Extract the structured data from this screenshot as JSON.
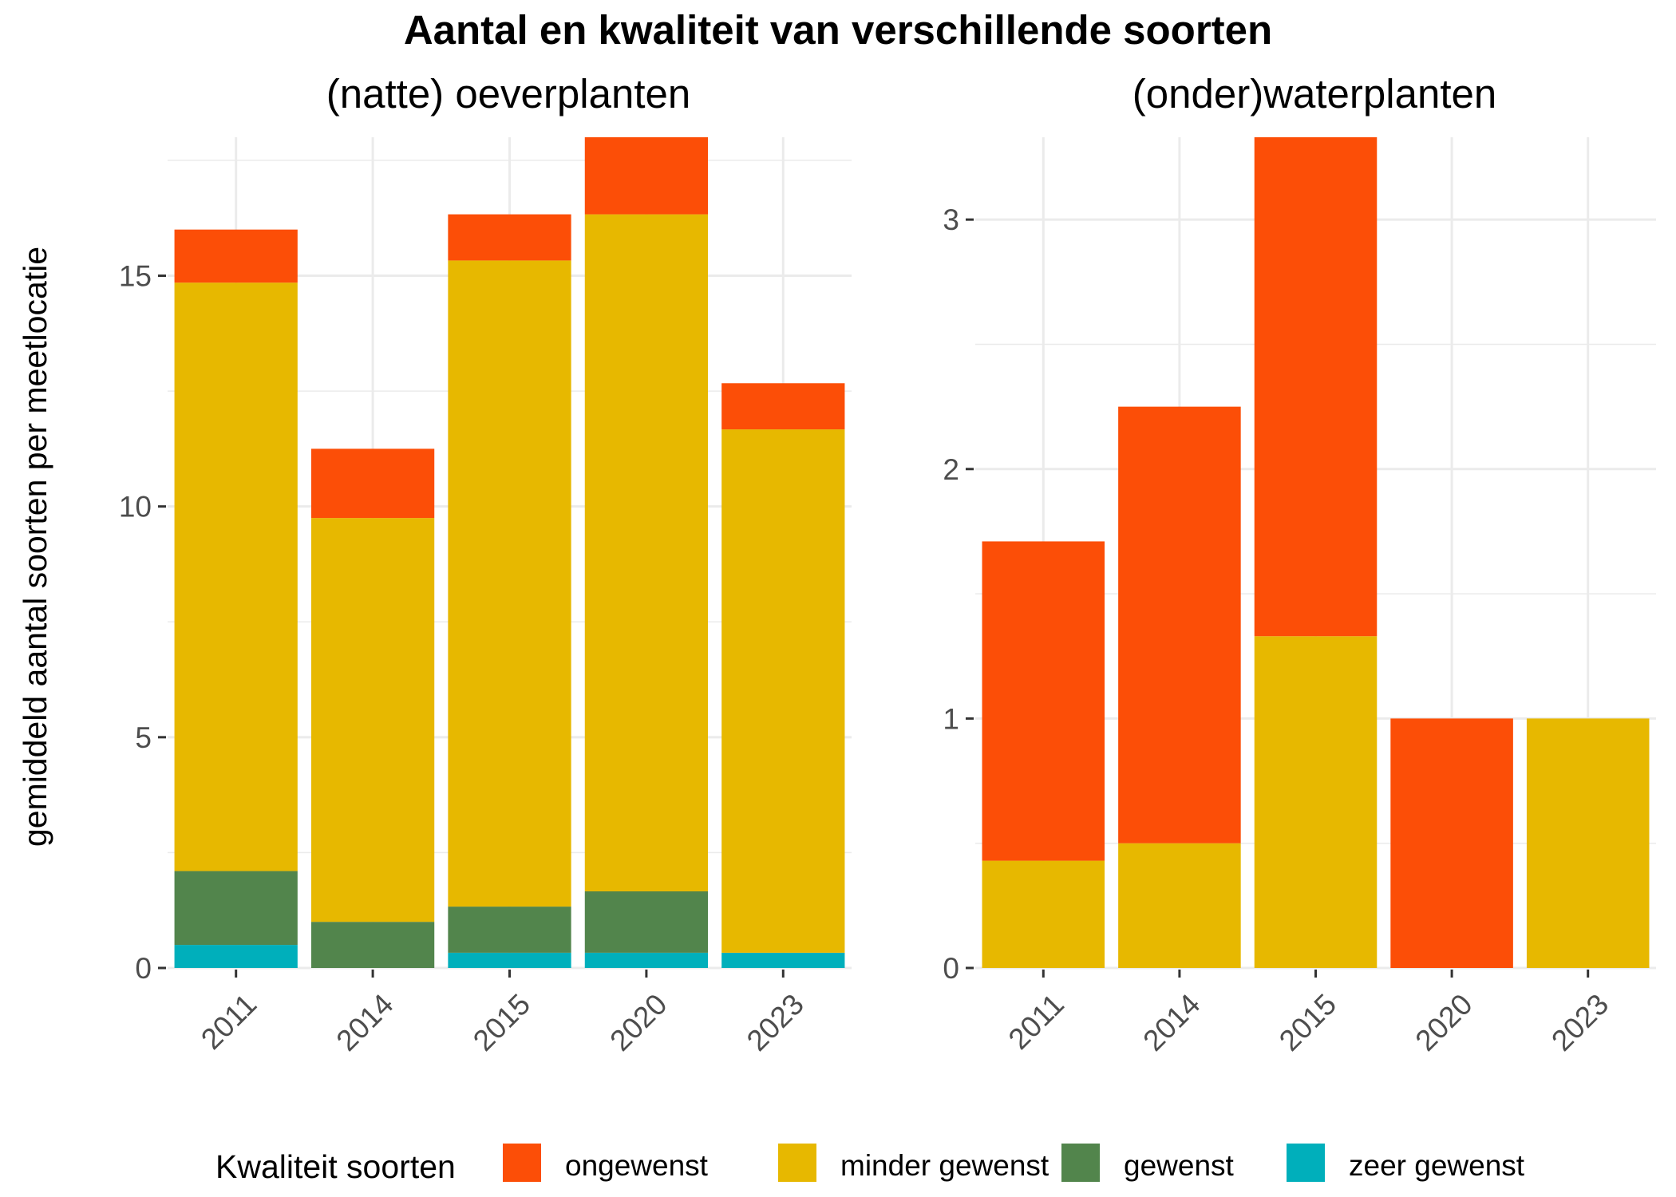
{
  "chart_data": {
    "type": "bar",
    "stacked": true,
    "title": "Aantal en kwaliteit van verschillende soorten",
    "ylabel": "gemiddeld aantal soorten per meetlocatie",
    "legend": {
      "title": "Kwaliteit soorten",
      "position": "bottom",
      "entries": [
        {
          "label": "ongewenst",
          "color": "#FC4E07"
        },
        {
          "label": "minder gewenst",
          "color": "#E7B800"
        },
        {
          "label": "gewenst",
          "color": "#52854C"
        },
        {
          "label": "zeer gewenst",
          "color": "#00AFBB"
        }
      ]
    },
    "panels": [
      {
        "subtitle": "(natte) oeverplanten",
        "categories": [
          "2011",
          "2014",
          "2015",
          "2020",
          "2023"
        ],
        "ylim": [
          0,
          18
        ],
        "yticks": [
          0,
          5,
          10,
          15
        ],
        "grid": true,
        "series": [
          {
            "name": "zeer gewenst",
            "values": [
              0.5,
              0,
              0.33,
              0.33,
              0.33
            ]
          },
          {
            "name": "gewenst",
            "values": [
              1.6,
              1.0,
              1.0,
              1.33,
              0
            ]
          },
          {
            "name": "minder gewenst",
            "values": [
              12.75,
              8.75,
              14.0,
              14.67,
              11.34
            ]
          },
          {
            "name": "ongewenst",
            "values": [
              1.15,
              1.5,
              1.0,
              1.67,
              1.0
            ]
          }
        ]
      },
      {
        "subtitle": "(onder)waterplanten",
        "categories": [
          "2011",
          "2014",
          "2015",
          "2020",
          "2023"
        ],
        "ylim": [
          0,
          3.33
        ],
        "yticks": [
          0,
          1,
          2,
          3
        ],
        "grid": true,
        "series": [
          {
            "name": "zeer gewenst",
            "values": [
              0,
              0,
              0,
              0,
              0
            ]
          },
          {
            "name": "gewenst",
            "values": [
              0,
              0,
              0,
              0,
              0
            ]
          },
          {
            "name": "minder gewenst",
            "values": [
              0.43,
              0.5,
              1.33,
              0,
              1.0
            ]
          },
          {
            "name": "ongewenst",
            "values": [
              1.28,
              1.75,
              2.0,
              1.0,
              0
            ]
          }
        ]
      }
    ]
  }
}
